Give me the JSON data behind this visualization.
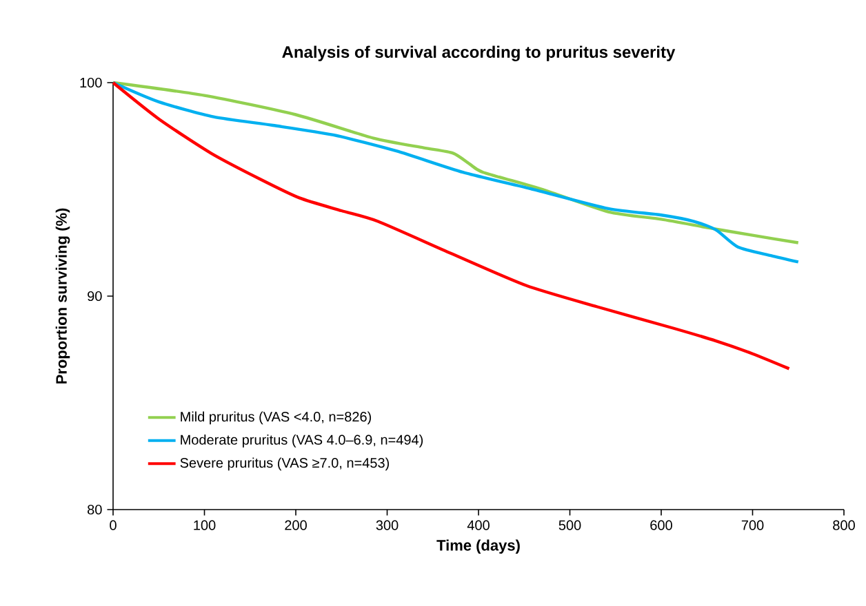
{
  "chart_data": {
    "type": "line",
    "title": "Analysis of survival according to pruritus severity",
    "xlabel": "Time (days)",
    "ylabel": "Proportion surviving (%)",
    "xlim": [
      0,
      800
    ],
    "xticks": [
      0,
      100,
      200,
      300,
      400,
      500,
      600,
      700,
      800
    ],
    "ylim": [
      80,
      100
    ],
    "yticks": [
      80,
      90,
      100
    ],
    "legend": "bottom left",
    "grid": false,
    "series": [
      {
        "name": "Mild pruritus (VAS <4.0, n=826)",
        "color": "#92d050",
        "x": [
          0,
          100,
          200,
          285,
          340,
          372,
          390,
          405,
          470,
          542,
          600,
          652,
          700,
          750
        ],
        "values": [
          100,
          99.4,
          98.5,
          97.4,
          96.95,
          96.7,
          96.2,
          95.8,
          95,
          93.95,
          93.6,
          93.2,
          92.85,
          92.5
        ]
      },
      {
        "name": "Moderate pruritus (VAS 4.0–6.9, n=494)",
        "color": "#00b0f0",
        "x": [
          0,
          50,
          110,
          175,
          241,
          310,
          383,
          460,
          542,
          600,
          636,
          660,
          684,
          720,
          750
        ],
        "values": [
          100,
          99.1,
          98.4,
          98,
          97.55,
          96.8,
          95.8,
          95,
          94.1,
          93.8,
          93.5,
          93.1,
          92.3,
          91.9,
          91.6
        ]
      },
      {
        "name": "Severe pruritus (VAS ≥7.0, n=453)",
        "color": "#ff0000",
        "x": [
          0,
          50,
          107,
          160,
          204,
          250,
          290,
          370,
          452,
          530,
          613,
          660,
          700,
          740
        ],
        "values": [
          100,
          98.3,
          96.7,
          95.5,
          94.6,
          94,
          93.5,
          92,
          90.5,
          89.5,
          88.5,
          87.9,
          87.3,
          86.6
        ]
      }
    ]
  }
}
